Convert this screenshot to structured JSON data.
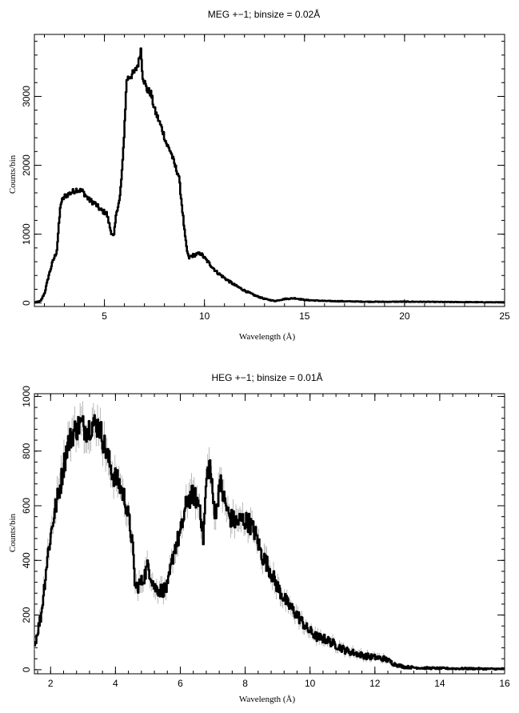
{
  "chart_data": [
    {
      "type": "line",
      "title": "MEG +−1; binsize = 0.02Å",
      "xlabel": "Wavelength (Å)",
      "ylabel": "Counts/bin",
      "xlim": [
        1.5,
        25
      ],
      "ylim": [
        -50,
        3900
      ],
      "xticks": [
        5,
        10,
        15,
        20,
        25
      ],
      "yticks": [
        0,
        1000,
        2000,
        3000
      ],
      "grid": false,
      "series": [
        {
          "x": [
            1.5,
            1.8,
            2.0,
            2.2,
            2.4,
            2.6,
            2.8,
            3.0,
            3.3,
            3.6,
            3.9,
            4.2,
            4.5,
            4.8,
            5.1,
            5.3,
            5.45,
            5.6,
            5.75,
            5.9,
            6.1,
            6.3,
            6.5,
            6.7,
            6.8,
            6.9,
            7.1,
            7.3,
            7.5,
            7.7,
            7.9,
            8.1,
            8.3,
            8.5,
            8.7,
            8.9,
            9.0,
            9.1,
            9.2,
            9.3,
            9.5,
            9.8,
            10.0,
            10.3,
            10.6,
            11.0,
            11.5,
            12.0,
            12.5,
            13.0,
            13.5,
            14.0,
            14.5,
            15.0,
            16.0,
            17.0,
            18.0,
            19.0,
            20.0,
            21.0,
            22.0,
            23.0,
            24.0,
            25.0
          ],
          "y": [
            10,
            30,
            150,
            400,
            600,
            750,
            1450,
            1550,
            1600,
            1650,
            1620,
            1500,
            1450,
            1350,
            1300,
            1050,
            950,
            1350,
            1500,
            2050,
            3250,
            3300,
            3350,
            3500,
            3700,
            3300,
            3100,
            3050,
            2800,
            2650,
            2500,
            2300,
            2200,
            2000,
            1850,
            1300,
            1000,
            780,
            650,
            680,
            700,
            720,
            650,
            550,
            450,
            360,
            260,
            180,
            110,
            60,
            30,
            60,
            70,
            45,
            30,
            25,
            20,
            18,
            20,
            18,
            15,
            14,
            12,
            10
          ],
          "errors": false
        }
      ]
    },
    {
      "type": "line",
      "title": "HEG +−1; binsize = 0.01Å",
      "xlabel": "Wavelength (Å)",
      "ylabel": "Counts/bin",
      "xlim": [
        1.5,
        16
      ],
      "ylim": [
        -15,
        1010
      ],
      "xticks": [
        2,
        4,
        6,
        8,
        10,
        12,
        14,
        16
      ],
      "yticks": [
        0,
        200,
        400,
        600,
        800,
        1000
      ],
      "grid": false,
      "series": [
        {
          "x": [
            1.5,
            1.7,
            1.9,
            2.1,
            2.3,
            2.5,
            2.7,
            2.9,
            3.1,
            3.3,
            3.5,
            3.7,
            3.9,
            4.1,
            4.3,
            4.5,
            4.6,
            4.8,
            5.0,
            5.2,
            5.4,
            5.6,
            5.8,
            6.0,
            6.2,
            6.4,
            6.6,
            6.7,
            6.8,
            6.9,
            7.0,
            7.1,
            7.2,
            7.3,
            7.5,
            7.7,
            7.9,
            8.1,
            8.3,
            8.5,
            8.7,
            9.0,
            9.3,
            9.6,
            9.9,
            10.2,
            10.5,
            10.8,
            11.1,
            11.4,
            11.7,
            12.0,
            12.3,
            12.6,
            12.9,
            13.2,
            13.5,
            14.0,
            14.5,
            15.0,
            15.5,
            16.0
          ],
          "y": [
            90,
            200,
            420,
            570,
            680,
            820,
            870,
            900,
            880,
            900,
            890,
            800,
            720,
            680,
            620,
            480,
            300,
            320,
            380,
            300,
            290,
            300,
            440,
            500,
            620,
            640,
            600,
            480,
            700,
            760,
            620,
            560,
            700,
            640,
            560,
            540,
            550,
            540,
            500,
            420,
            380,
            300,
            240,
            200,
            150,
            120,
            110,
            90,
            70,
            60,
            50,
            45,
            40,
            20,
            10,
            8,
            6,
            5,
            4,
            4,
            3,
            3
          ],
          "errors": true
        }
      ]
    }
  ]
}
